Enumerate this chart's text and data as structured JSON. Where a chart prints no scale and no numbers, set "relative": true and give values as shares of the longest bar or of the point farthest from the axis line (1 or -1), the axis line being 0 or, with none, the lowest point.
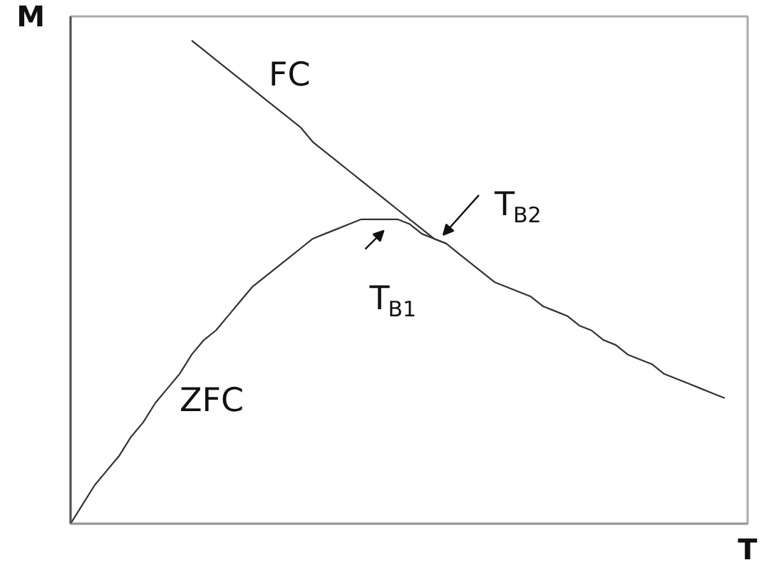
{
  "chart_data": {
    "type": "line",
    "relative": true,
    "xlabel": "T",
    "ylabel": "M",
    "categories": [
      null,
      null,
      null,
      null,
      null,
      null,
      null,
      null,
      null,
      null,
      null,
      null,
      null,
      null,
      null,
      null,
      null,
      null,
      null,
      null,
      null,
      null,
      null,
      null,
      null,
      null,
      null,
      null,
      null,
      null,
      null,
      null,
      null,
      null,
      null,
      null,
      null,
      null,
      null,
      null,
      null,
      null,
      null,
      null,
      null,
      null,
      null,
      null,
      null,
      null,
      null,
      null,
      null,
      null,
      null
    ],
    "series": [
      {
        "name": "FC",
        "color": "#333333",
        "values": [
          null,
          null,
          null,
          null,
          null,
          null,
          null,
          null,
          null,
          null,
          1.0,
          0.98,
          0.96,
          0.94,
          0.92,
          0.9,
          0.88,
          0.86,
          0.84,
          0.82,
          0.79,
          0.77,
          0.75,
          0.73,
          0.71,
          0.69,
          0.67,
          0.65,
          0.63,
          0.61,
          0.59,
          0.58,
          0.56,
          0.54,
          0.52,
          0.5,
          0.49,
          0.48,
          0.47,
          0.45,
          0.44,
          0.43,
          0.41,
          0.4,
          0.38,
          0.37,
          0.35,
          0.34,
          0.33,
          0.31,
          0.3,
          0.29,
          0.28,
          0.27,
          0.26
        ]
      },
      {
        "name": "ZFC",
        "color": "#333333",
        "values": [
          0,
          0.04,
          0.08,
          0.11,
          0.14,
          0.18,
          0.21,
          0.25,
          0.28,
          0.31,
          0.35,
          0.38,
          0.4,
          0.43,
          0.46,
          0.49,
          0.51,
          0.53,
          0.55,
          0.57,
          0.59,
          0.6,
          0.61,
          0.62,
          0.63,
          0.63,
          0.63,
          0.63,
          0.62,
          0.6,
          0.59,
          0.58,
          null,
          null,
          null,
          null,
          null,
          null,
          null,
          null,
          null,
          null,
          null,
          null,
          null,
          null,
          null,
          null,
          null,
          null,
          null,
          null,
          null,
          null,
          null
        ]
      }
    ],
    "annotations": [
      "T$_{B1}$",
      "T$_{B2}$"
    ]
  }
}
